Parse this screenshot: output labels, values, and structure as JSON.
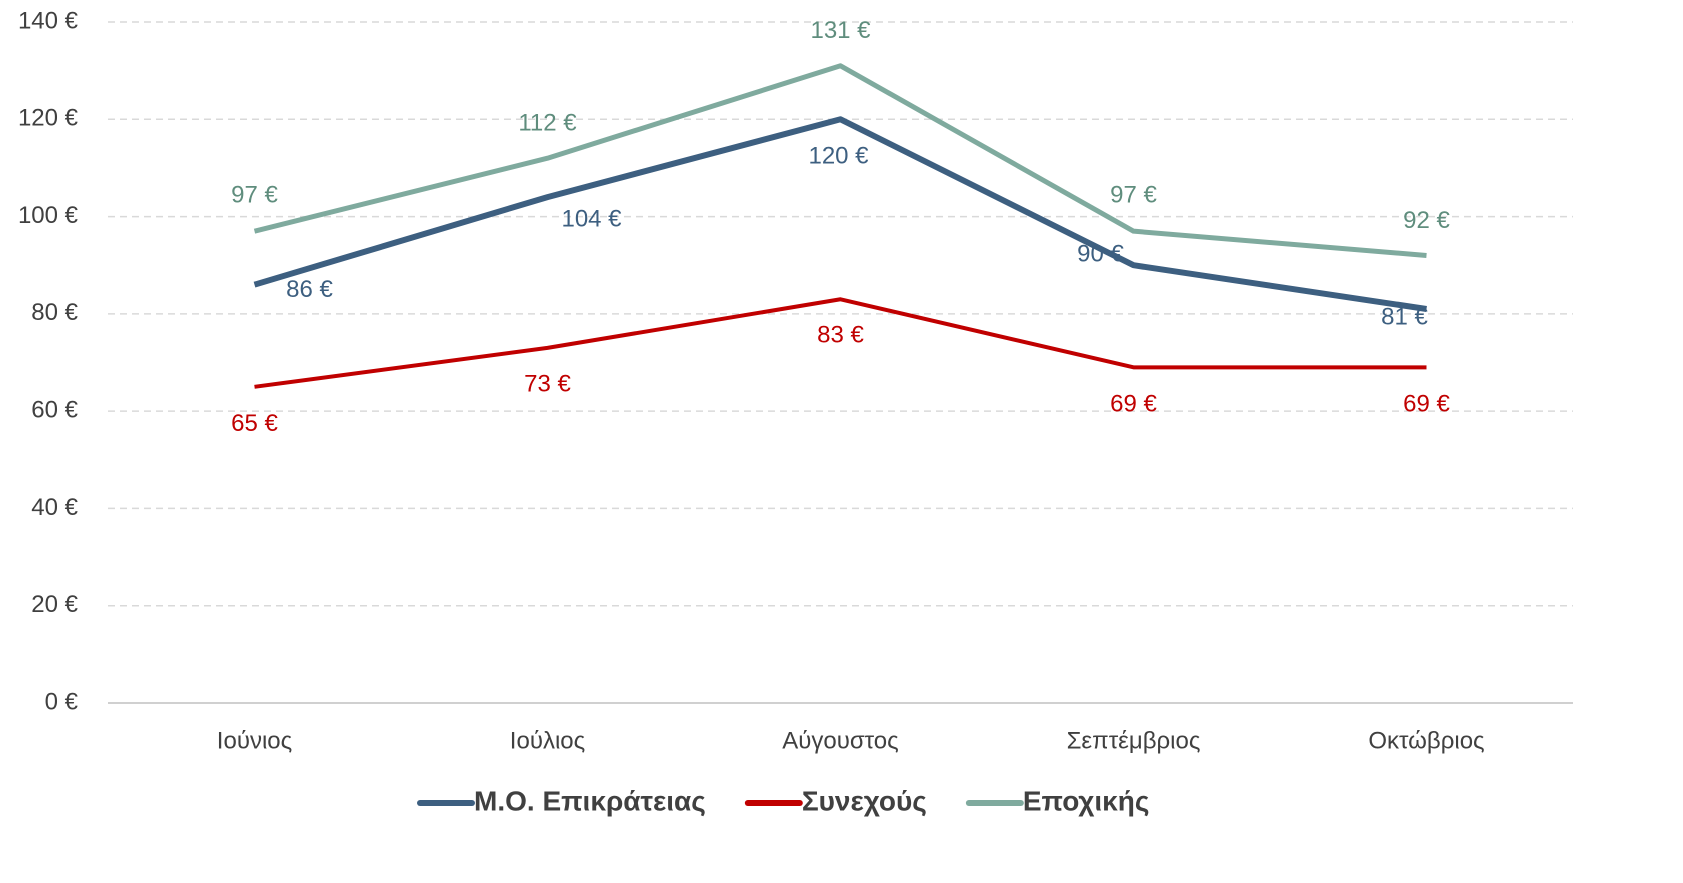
{
  "chart_data": {
    "type": "line",
    "categories": [
      "Ιούνιος",
      "Ιούλιος",
      "Αύγουστος",
      "Σεπτέμβριος",
      "Οκτώβριος"
    ],
    "series": [
      {
        "name": "Μ.Ο. Επικράτειας",
        "color": "#3d5f80",
        "values": [
          86,
          104,
          120,
          90,
          81
        ],
        "value_labels": [
          "86 €",
          "104 €",
          "120 €",
          "90 €",
          "81 €"
        ]
      },
      {
        "name": "Συνεχούς",
        "color": "#c00000",
        "values": [
          65,
          73,
          83,
          69,
          69
        ],
        "value_labels": [
          "65 €",
          "73 €",
          "83 €",
          "69 €",
          "69 €"
        ]
      },
      {
        "name": "Εποχικής",
        "color": "#7faa9e",
        "values": [
          97,
          112,
          131,
          97,
          92
        ],
        "value_labels": [
          "97 €",
          "112 €",
          "131 €",
          "97 €",
          "92 €"
        ]
      }
    ],
    "ylim": [
      0,
      140
    ],
    "yticks": [
      {
        "value": 0,
        "label": "0 €"
      },
      {
        "value": 20,
        "label": "20 €"
      },
      {
        "value": 40,
        "label": "40 €"
      },
      {
        "value": 60,
        "label": "60 €"
      },
      {
        "value": 80,
        "label": "80 €"
      },
      {
        "value": 100,
        "label": "100 €"
      },
      {
        "value": 120,
        "label": "120 €"
      },
      {
        "value": 140,
        "label": "140 €"
      }
    ],
    "grid": true,
    "legend": "bottom"
  }
}
